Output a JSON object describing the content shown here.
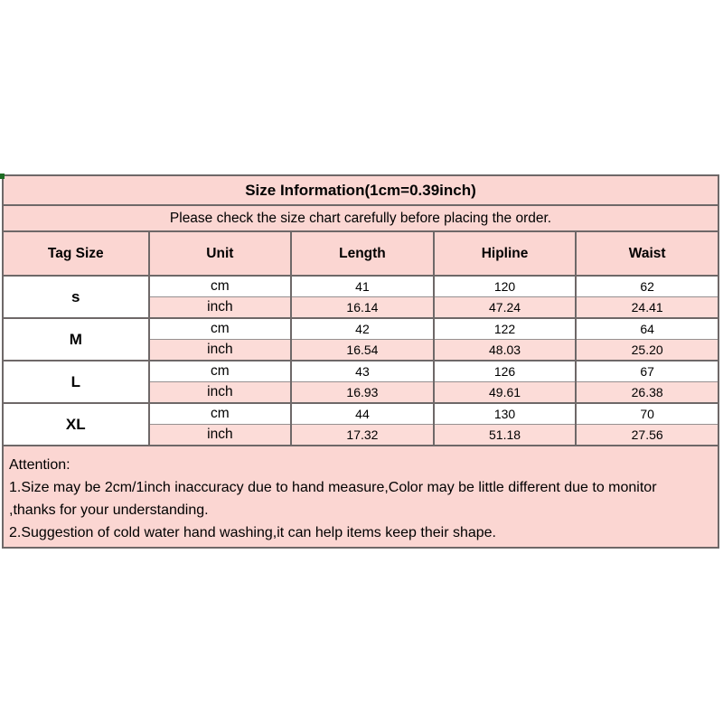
{
  "title": "Size Information(1cm=0.39inch)",
  "subtitle": "Please check the size chart carefully before placing the order.",
  "columns": [
    "Tag Size",
    "Unit",
    "Length",
    "Hipline",
    "Waist"
  ],
  "sizes": [
    {
      "tag": "s",
      "rows": [
        {
          "unit": "cm",
          "length": "41",
          "hipline": "120",
          "waist": "62"
        },
        {
          "unit": "inch",
          "length": "16.14",
          "hipline": "47.24",
          "waist": "24.41"
        }
      ]
    },
    {
      "tag": "M",
      "rows": [
        {
          "unit": "cm",
          "length": "42",
          "hipline": "122",
          "waist": "64"
        },
        {
          "unit": "inch",
          "length": "16.54",
          "hipline": "48.03",
          "waist": "25.20"
        }
      ]
    },
    {
      "tag": "L",
      "rows": [
        {
          "unit": "cm",
          "length": "43",
          "hipline": "126",
          "waist": "67"
        },
        {
          "unit": "inch",
          "length": "16.93",
          "hipline": "49.61",
          "waist": "26.38"
        }
      ]
    },
    {
      "tag": "XL",
      "rows": [
        {
          "unit": "cm",
          "length": "44",
          "hipline": "130",
          "waist": "70"
        },
        {
          "unit": "inch",
          "length": "17.32",
          "hipline": "51.18",
          "waist": "27.56"
        }
      ]
    }
  ],
  "attention": {
    "heading": "Attention:",
    "line1": "1.Size may be 2cm/1inch inaccuracy due to hand measure,Color may be little different due to monitor",
    "line2": ",thanks for your understanding.",
    "line3": "2.Suggestion of cold water hand washing,it can help items keep their shape."
  },
  "colors": {
    "pink": "#fbd6d2",
    "pink-light": "#fcdcd8",
    "line": "#6e6868",
    "line-dark": "#4c4c4c",
    "dot-green": "#1d6b22"
  },
  "chart_data": {
    "type": "table",
    "title": "Size Information(1cm=0.39inch)",
    "subtitle": "Please check the size chart carefully before placing the order.",
    "columns": [
      "Tag Size",
      "Unit",
      "Length",
      "Hipline",
      "Waist"
    ],
    "rows": [
      [
        "s",
        "cm",
        41,
        120,
        62
      ],
      [
        "s",
        "inch",
        16.14,
        47.24,
        24.41
      ],
      [
        "M",
        "cm",
        42,
        122,
        64
      ],
      [
        "M",
        "inch",
        16.54,
        48.03,
        25.2
      ],
      [
        "L",
        "cm",
        43,
        126,
        67
      ],
      [
        "L",
        "inch",
        16.93,
        49.61,
        26.38
      ],
      [
        "XL",
        "cm",
        44,
        130,
        70
      ],
      [
        "XL",
        "inch",
        17.32,
        51.18,
        27.56
      ]
    ],
    "notes": [
      "Attention:",
      "1.Size may be 2cm/1inch inaccuracy due to hand measure,Color may be little different due to monitor ,thanks for your understanding.",
      "2.Suggestion of cold water hand washing,it can help items keep their shape."
    ]
  }
}
